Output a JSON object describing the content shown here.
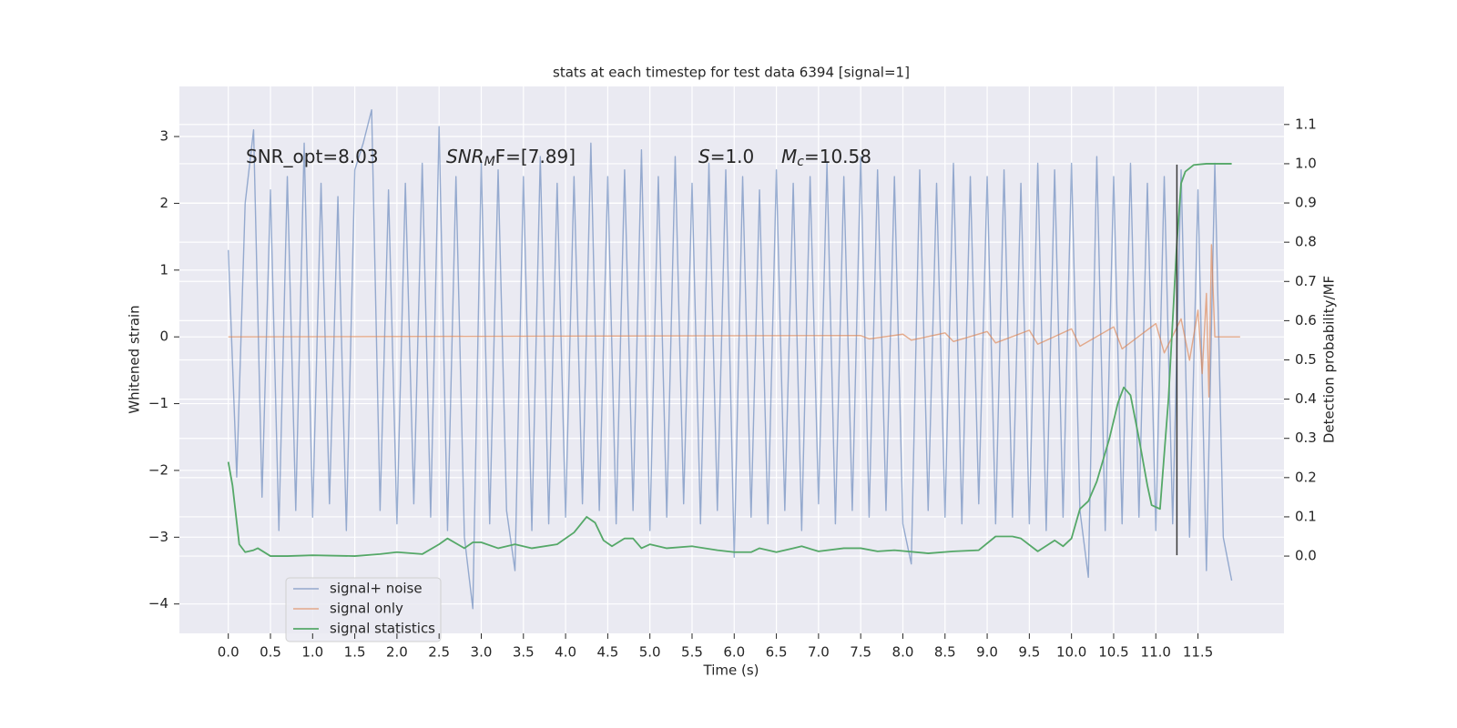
{
  "chart_data": {
    "type": "line",
    "title": "stats at each timestep for test data 6394 [signal=1]",
    "xlabel": "Time (s)",
    "ylabel": "Whitened strain",
    "y2label": "Detection probability/MF",
    "xlim": [
      -0.58,
      12.52
    ],
    "ylim": [
      -4.44,
      3.75
    ],
    "y2lim": [
      -0.197,
      1.197
    ],
    "xticks": [
      {
        "value": 0,
        "label": "0.0"
      },
      0.5,
      {
        "value": 1,
        "label": "1.0"
      },
      1.5,
      {
        "value": 2,
        "label": "2.0"
      },
      2.5,
      {
        "value": 3,
        "label": "3.0"
      },
      3.5,
      {
        "value": 4,
        "label": "4.0"
      },
      4.5,
      {
        "value": 5,
        "label": "5.0"
      },
      5.5,
      {
        "value": 6,
        "label": "6.0"
      },
      6.5,
      {
        "value": 7,
        "label": "7.0"
      },
      7.5,
      {
        "value": 8,
        "label": "8.0"
      },
      8.5,
      {
        "value": 9,
        "label": "9.0"
      },
      9.5,
      {
        "value": 10,
        "label": "10.0"
      },
      10.5,
      {
        "value": 11,
        "label": "11.0"
      },
      11.5
    ],
    "yticks": [
      {
        "value": -4,
        "label": "−4"
      },
      {
        "value": -3,
        "label": "−3"
      },
      {
        "value": -2,
        "label": "−2"
      },
      {
        "value": -1,
        "label": "−1"
      },
      0,
      1,
      2,
      3
    ],
    "y2ticks": [
      {
        "value": 0,
        "label": "0.0"
      },
      0.1,
      0.2,
      0.3,
      0.4,
      0.5,
      0.6,
      0.7,
      0.8,
      0.9,
      {
        "value": 1,
        "label": "1.0"
      },
      1.1
    ],
    "grid": true,
    "legend": "lower left",
    "annotations": [
      {
        "text": "SNR_opt=8.03"
      },
      {
        "base": "SNR",
        "sub": "M",
        "rest": "F=[7.89]"
      },
      {
        "base": "S",
        "rest": "=1.0"
      },
      {
        "base": "M",
        "sub": "c",
        "rest": "=10.58"
      }
    ],
    "vline": {
      "x": 11.25,
      "ymin": -3.27,
      "ymax": 2.58,
      "color": "#3a3a3a"
    },
    "series": [
      {
        "name": "signal+ noise",
        "color": "#4c72b0",
        "x": [
          0.0,
          0.1,
          0.2,
          0.3,
          0.4,
          0.5,
          0.6,
          0.7,
          0.8,
          0.9,
          1.0,
          1.1,
          1.2,
          1.3,
          1.4,
          1.5,
          1.6,
          1.7,
          1.8,
          1.9,
          2.0,
          2.1,
          2.2,
          2.3,
          2.4,
          2.5,
          2.6,
          2.7,
          2.8,
          2.9,
          3.0,
          3.1,
          3.2,
          3.3,
          3.4,
          3.5,
          3.6,
          3.7,
          3.8,
          3.9,
          4.0,
          4.1,
          4.2,
          4.3,
          4.4,
          4.5,
          4.6,
          4.7,
          4.8,
          4.9,
          5.0,
          5.1,
          5.2,
          5.3,
          5.4,
          5.5,
          5.6,
          5.7,
          5.8,
          5.9,
          6.0,
          6.1,
          6.2,
          6.3,
          6.4,
          6.5,
          6.6,
          6.7,
          6.8,
          6.9,
          7.0,
          7.1,
          7.2,
          7.3,
          7.4,
          7.5,
          7.6,
          7.7,
          7.8,
          7.9,
          8.0,
          8.1,
          8.2,
          8.3,
          8.4,
          8.5,
          8.6,
          8.7,
          8.8,
          8.9,
          9.0,
          9.1,
          9.2,
          9.3,
          9.4,
          9.5,
          9.6,
          9.7,
          9.8,
          9.9,
          10.0,
          10.1,
          10.2,
          10.3,
          10.4,
          10.5,
          10.6,
          10.7,
          10.8,
          10.9,
          11.0,
          11.1,
          11.2,
          11.3,
          11.4,
          11.5,
          11.6,
          11.7,
          11.8,
          11.9
        ],
        "values": [
          1.3,
          -2.1,
          2.0,
          3.1,
          -2.4,
          2.2,
          -2.9,
          2.4,
          -2.6,
          2.9,
          -2.7,
          2.3,
          -2.5,
          2.1,
          -2.9,
          2.5,
          2.9,
          3.4,
          -2.6,
          2.2,
          -2.8,
          2.3,
          -2.5,
          2.6,
          -2.7,
          3.15,
          -2.9,
          2.4,
          -3.0,
          -4.07,
          2.6,
          -2.8,
          2.5,
          -2.6,
          -3.5,
          2.4,
          -2.9,
          2.7,
          -2.8,
          2.3,
          -2.7,
          2.4,
          -2.5,
          2.9,
          -2.6,
          2.4,
          -2.8,
          2.5,
          -2.6,
          2.8,
          -2.9,
          2.4,
          -2.7,
          2.7,
          -2.5,
          2.3,
          -2.8,
          2.6,
          -2.6,
          2.5,
          -3.3,
          2.4,
          -2.7,
          2.2,
          -2.8,
          2.5,
          -2.6,
          2.3,
          -2.9,
          2.4,
          -2.5,
          2.6,
          -2.8,
          2.4,
          -2.6,
          2.7,
          -2.7,
          2.5,
          -2.6,
          2.4,
          -2.8,
          -3.4,
          2.5,
          -2.6,
          2.3,
          -2.7,
          2.6,
          -2.8,
          2.4,
          -2.5,
          2.4,
          -2.8,
          2.5,
          -2.7,
          2.3,
          -2.8,
          2.6,
          -2.9,
          2.5,
          -2.7,
          2.6,
          -2.6,
          -3.6,
          2.7,
          -2.9,
          2.4,
          -2.8,
          2.6,
          -2.7,
          2.3,
          -2.9,
          2.4,
          -2.8,
          2.5,
          -3.0,
          2.2,
          -3.5,
          2.6,
          -3.0,
          -3.65
        ]
      },
      {
        "name": "signal only",
        "color": "#dd8452",
        "x": [
          0.0,
          7.5,
          7.6,
          8.0,
          8.1,
          8.5,
          8.6,
          9.0,
          9.1,
          9.5,
          9.6,
          10.0,
          10.1,
          10.5,
          10.6,
          11.0,
          11.1,
          11.3,
          11.4,
          11.5,
          11.55,
          11.6,
          11.63,
          11.66,
          11.7,
          12.0
        ],
        "values": [
          0,
          0.02,
          -0.03,
          0.04,
          -0.05,
          0.06,
          -0.07,
          0.08,
          -0.09,
          0.1,
          -0.11,
          0.12,
          -0.14,
          0.15,
          -0.18,
          0.2,
          -0.24,
          0.27,
          -0.35,
          0.4,
          -0.55,
          0.65,
          -0.9,
          1.38,
          0,
          0
        ]
      },
      {
        "name": "signal statistics",
        "color": "#55a868",
        "axis": "y2",
        "x": [
          0.0,
          0.05,
          0.13,
          0.2,
          0.3,
          0.35,
          0.5,
          0.7,
          1.0,
          1.5,
          1.8,
          2.0,
          2.3,
          2.5,
          2.6,
          2.8,
          2.9,
          3.0,
          3.2,
          3.4,
          3.6,
          3.9,
          4.1,
          4.25,
          4.35,
          4.45,
          4.55,
          4.7,
          4.8,
          4.9,
          5.0,
          5.2,
          5.5,
          5.8,
          6.0,
          6.2,
          6.3,
          6.5,
          6.7,
          6.8,
          7.0,
          7.3,
          7.5,
          7.7,
          7.9,
          8.3,
          8.6,
          8.9,
          9.1,
          9.3,
          9.4,
          9.6,
          9.8,
          9.9,
          10.0,
          10.1,
          10.2,
          10.3,
          10.45,
          10.55,
          10.62,
          10.7,
          10.8,
          10.9,
          10.95,
          11.05,
          11.15,
          11.25,
          11.3,
          11.35,
          11.45,
          11.6,
          11.9
        ],
        "values": [
          0.24,
          0.18,
          0.03,
          0.01,
          0.015,
          0.02,
          0.0,
          0.0,
          0.002,
          0.0,
          0.005,
          0.01,
          0.005,
          0.03,
          0.045,
          0.02,
          0.035,
          0.035,
          0.02,
          0.03,
          0.02,
          0.03,
          0.06,
          0.1,
          0.085,
          0.04,
          0.025,
          0.045,
          0.045,
          0.02,
          0.03,
          0.02,
          0.025,
          0.015,
          0.01,
          0.01,
          0.02,
          0.01,
          0.02,
          0.025,
          0.012,
          0.02,
          0.02,
          0.012,
          0.015,
          0.007,
          0.012,
          0.015,
          0.05,
          0.05,
          0.045,
          0.012,
          0.04,
          0.025,
          0.045,
          0.12,
          0.14,
          0.19,
          0.3,
          0.39,
          0.43,
          0.41,
          0.3,
          0.18,
          0.13,
          0.12,
          0.4,
          0.8,
          0.95,
          0.98,
          0.997,
          1.0,
          1.0
        ]
      }
    ]
  }
}
